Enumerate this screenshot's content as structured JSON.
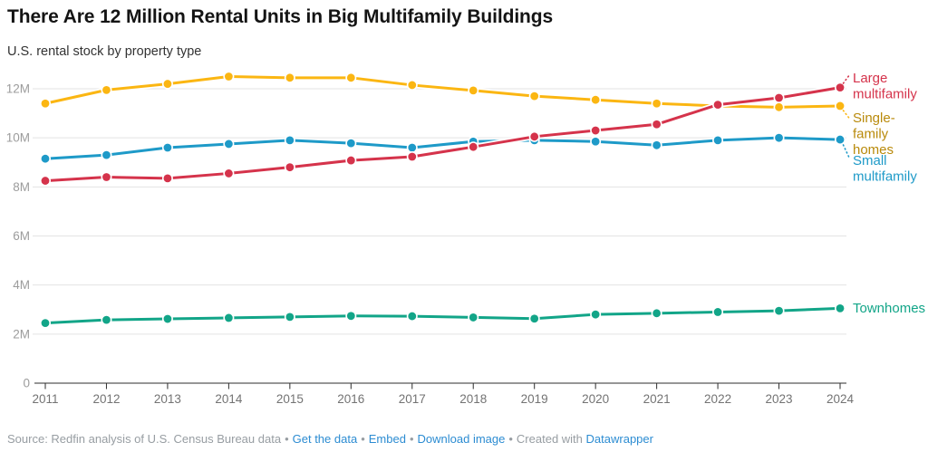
{
  "chart_data": {
    "type": "line",
    "title": "There Are 12 Million Rental Units in Big Multifamily Buildings",
    "subtitle": "U.S. rental stock by property type",
    "x": [
      2011,
      2012,
      2013,
      2014,
      2015,
      2016,
      2017,
      2018,
      2019,
      2020,
      2021,
      2022,
      2023,
      2024
    ],
    "xlabel": "",
    "ylabel": "",
    "ylim": [
      0,
      13.2
    ],
    "grid": true,
    "legend_position": "right-direct-labels",
    "yticks": [
      0,
      2,
      4,
      6,
      8,
      10,
      12
    ],
    "ytick_labels": [
      "0",
      "2M",
      "4M",
      "6M",
      "8M",
      "10M",
      "12M"
    ],
    "unit": "millions of units",
    "series": [
      {
        "name": "Large multifamily",
        "label_lines": [
          "Large",
          "multifamily"
        ],
        "color": "#d5334b",
        "label_color": "#d5334b",
        "values": [
          8.25,
          8.4,
          8.35,
          8.55,
          8.8,
          9.08,
          9.23,
          9.63,
          10.05,
          10.3,
          10.55,
          11.35,
          11.63,
          12.05
        ]
      },
      {
        "name": "Single-family homes",
        "label_lines": [
          "Single-",
          "family",
          "homes"
        ],
        "color": "#fbb612",
        "label_color": "#b98a0b",
        "values": [
          11.4,
          11.95,
          12.2,
          12.5,
          12.45,
          12.45,
          12.15,
          11.93,
          11.7,
          11.55,
          11.4,
          11.3,
          11.25,
          11.3
        ]
      },
      {
        "name": "Small multifamily",
        "label_lines": [
          "Small",
          "multifamily"
        ],
        "color": "#1e9ac8",
        "label_color": "#1e9ac8",
        "values": [
          9.15,
          9.3,
          9.6,
          9.75,
          9.9,
          9.78,
          9.6,
          9.85,
          9.9,
          9.85,
          9.7,
          9.9,
          10.0,
          9.93
        ]
      },
      {
        "name": "Townhomes",
        "label_lines": [
          "Townhomes"
        ],
        "color": "#12a588",
        "label_color": "#12a588",
        "values": [
          2.45,
          2.58,
          2.62,
          2.66,
          2.7,
          2.74,
          2.73,
          2.68,
          2.63,
          2.8,
          2.85,
          2.9,
          2.95,
          3.05
        ]
      }
    ]
  },
  "footer": {
    "source_text": "Source: Redfin analysis of U.S. Census Bureau data",
    "separator": "•",
    "links": [
      "Get the data",
      "Embed",
      "Download image"
    ],
    "created_with": "Created with",
    "datawrapper": "Datawrapper"
  }
}
